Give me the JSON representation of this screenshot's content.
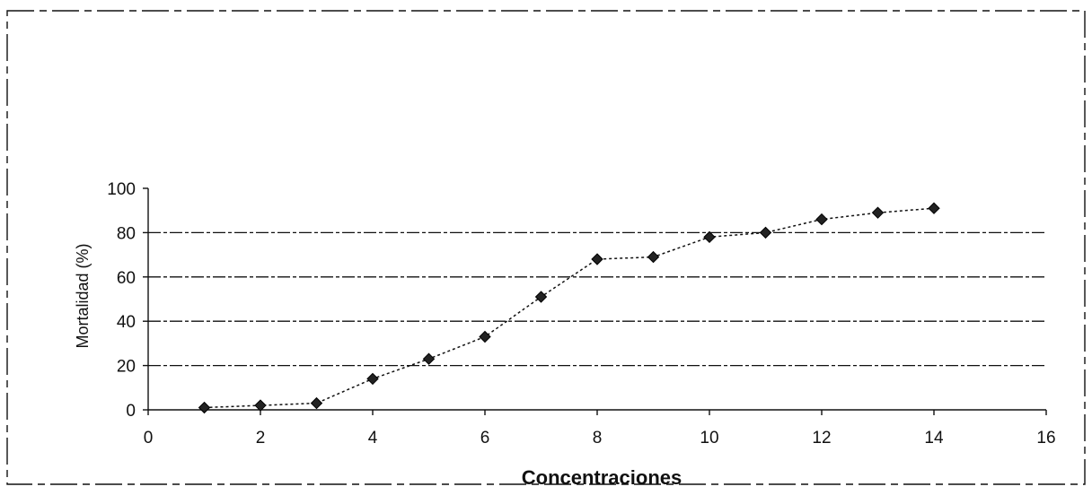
{
  "chart_data": {
    "type": "scatter",
    "title": "",
    "xlabel": "Concentraciones",
    "ylabel": "Mortalidad (%)",
    "xlim": [
      0,
      16
    ],
    "ylim": [
      0,
      100
    ],
    "x_ticks": [
      "0",
      "2",
      "4",
      "6",
      "8",
      "10",
      "12",
      "14",
      "16"
    ],
    "y_ticks": [
      "0",
      "20",
      "40",
      "60",
      "80",
      "100"
    ],
    "grid": true,
    "legend": "none",
    "series": [
      {
        "x": [
          1,
          2,
          3,
          4,
          5,
          6,
          7,
          8,
          9,
          10,
          11,
          12,
          13,
          14
        ],
        "y": [
          1,
          2,
          3,
          14,
          23,
          33,
          51,
          68,
          69,
          78,
          80,
          86,
          89,
          91
        ]
      }
    ],
    "colors": {
      "ink": "#111111",
      "marker": "#222222"
    },
    "marker": "diamond"
  }
}
